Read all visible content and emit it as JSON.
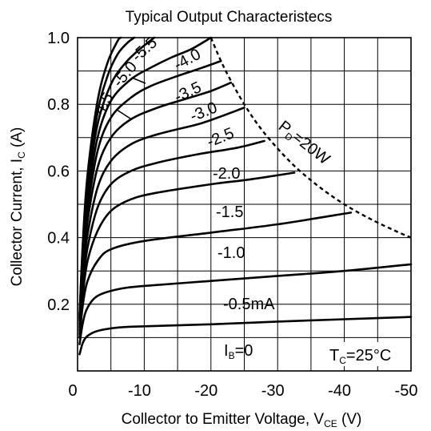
{
  "chart_data": {
    "type": "line",
    "title": "Typical Output Characteristecs",
    "xlabel": {
      "main": "Collector to Emitter Voltage, V",
      "sub": "CE",
      "unit": " (V)"
    },
    "ylabel": {
      "main": "Collector Current, I",
      "sub": "C",
      "unit": " (A)"
    },
    "xlim": [
      0,
      -50
    ],
    "ylim": [
      0,
      1.0
    ],
    "x_ticks": [
      "0",
      "-10",
      "-20",
      "-30",
      "-40",
      "-50"
    ],
    "y_ticks": [
      "0.2",
      "0.4",
      "0.6",
      "0.8",
      "1.0"
    ],
    "grid": true,
    "series": [
      {
        "name": "I_B=0",
        "points": [
          [
            -0.3,
            0.05
          ],
          [
            -0.8,
            0.085
          ],
          [
            -1.5,
            0.105
          ],
          [
            -3,
            0.12
          ],
          [
            -6,
            0.13
          ],
          [
            -10,
            0.134
          ],
          [
            -20,
            0.14
          ],
          [
            -30,
            0.148
          ],
          [
            -40,
            0.155
          ],
          [
            -50,
            0.162
          ]
        ]
      },
      {
        "name": "-0.5mA",
        "points": [
          [
            -0.3,
            0.08
          ],
          [
            -0.8,
            0.145
          ],
          [
            -1.5,
            0.19
          ],
          [
            -3,
            0.225
          ],
          [
            -6,
            0.245
          ],
          [
            -10,
            0.255
          ],
          [
            -20,
            0.27
          ],
          [
            -30,
            0.285
          ],
          [
            -40,
            0.3
          ],
          [
            -50,
            0.32
          ]
        ]
      },
      {
        "name": "-1.0",
        "points": [
          [
            -0.3,
            0.1
          ],
          [
            -0.8,
            0.2
          ],
          [
            -1.5,
            0.27
          ],
          [
            -3,
            0.33
          ],
          [
            -5,
            0.365
          ],
          [
            -10,
            0.39
          ],
          [
            -20,
            0.415
          ],
          [
            -30,
            0.44
          ],
          [
            -41,
            0.475
          ]
        ]
      },
      {
        "name": "-1.5",
        "points": [
          [
            -0.3,
            0.11
          ],
          [
            -0.8,
            0.23
          ],
          [
            -1.5,
            0.33
          ],
          [
            -3,
            0.42
          ],
          [
            -5,
            0.48
          ],
          [
            -8,
            0.515
          ],
          [
            -12,
            0.535
          ],
          [
            -20,
            0.56
          ],
          [
            -26,
            0.575
          ],
          [
            -32.5,
            0.595
          ]
        ]
      },
      {
        "name": "-2.0",
        "points": [
          [
            -0.3,
            0.12
          ],
          [
            -0.8,
            0.26
          ],
          [
            -1.5,
            0.37
          ],
          [
            -3,
            0.49
          ],
          [
            -5,
            0.56
          ],
          [
            -8,
            0.6
          ],
          [
            -12,
            0.625
          ],
          [
            -18,
            0.65
          ],
          [
            -24,
            0.67
          ],
          [
            -28,
            0.69
          ]
        ]
      },
      {
        "name": "-2.5",
        "points": [
          [
            -0.3,
            0.13
          ],
          [
            -0.8,
            0.29
          ],
          [
            -1.5,
            0.41
          ],
          [
            -3,
            0.55
          ],
          [
            -5,
            0.63
          ],
          [
            -8,
            0.68
          ],
          [
            -12,
            0.71
          ],
          [
            -18,
            0.74
          ],
          [
            -21,
            0.76
          ],
          [
            -25,
            0.79
          ]
        ]
      },
      {
        "name": "-3.0",
        "points": [
          [
            -0.3,
            0.14
          ],
          [
            -0.8,
            0.31
          ],
          [
            -1.5,
            0.45
          ],
          [
            -3,
            0.61
          ],
          [
            -5,
            0.7
          ],
          [
            -8,
            0.755
          ],
          [
            -12,
            0.79
          ],
          [
            -16,
            0.815
          ],
          [
            -20,
            0.84
          ],
          [
            -23,
            0.865
          ]
        ]
      },
      {
        "name": "-3.5",
        "points": [
          [
            -0.3,
            0.15
          ],
          [
            -0.8,
            0.33
          ],
          [
            -1.5,
            0.48
          ],
          [
            -3,
            0.66
          ],
          [
            -5,
            0.76
          ],
          [
            -8,
            0.82
          ],
          [
            -11,
            0.855
          ],
          [
            -15,
            0.885
          ],
          [
            -18,
            0.905
          ],
          [
            -21.5,
            0.93
          ]
        ]
      },
      {
        "name": "-4.0",
        "points": [
          [
            -0.3,
            0.155
          ],
          [
            -0.8,
            0.345
          ],
          [
            -1.5,
            0.51
          ],
          [
            -3,
            0.7
          ],
          [
            -5,
            0.81
          ],
          [
            -8,
            0.875
          ],
          [
            -11,
            0.91
          ],
          [
            -14,
            0.94
          ],
          [
            -17,
            0.965
          ],
          [
            -20,
            1.0
          ]
        ]
      },
      {
        "name": "-4.5",
        "points": [
          [
            -0.3,
            0.16
          ],
          [
            -0.8,
            0.36
          ],
          [
            -1.5,
            0.54
          ],
          [
            -3,
            0.74
          ],
          [
            -5,
            0.86
          ],
          [
            -7,
            0.92
          ],
          [
            -9,
            0.96
          ],
          [
            -11.5,
            1.0
          ]
        ]
      },
      {
        "name": "-5.0",
        "points": [
          [
            -0.3,
            0.165
          ],
          [
            -0.8,
            0.375
          ],
          [
            -1.5,
            0.565
          ],
          [
            -3,
            0.775
          ],
          [
            -4.5,
            0.885
          ],
          [
            -6,
            0.95
          ],
          [
            -7.5,
            0.985
          ],
          [
            -8.5,
            1.0
          ]
        ]
      },
      {
        "name": "-5.5",
        "points": [
          [
            -0.3,
            0.17
          ],
          [
            -0.8,
            0.39
          ],
          [
            -1.5,
            0.59
          ],
          [
            -3,
            0.81
          ],
          [
            -4.5,
            0.925
          ],
          [
            -6,
            0.99
          ],
          [
            -6.5,
            1.0
          ]
        ]
      }
    ],
    "pd_curve": {
      "label_main": "P",
      "label_sub": "D",
      "label_rest": "=20W",
      "points": [
        [
          -20,
          1.0
        ],
        [
          -22,
          0.909
        ],
        [
          -25,
          0.8
        ],
        [
          -28,
          0.714
        ],
        [
          -32,
          0.625
        ],
        [
          -36,
          0.556
        ],
        [
          -40,
          0.5
        ],
        [
          -44,
          0.455
        ],
        [
          -48,
          0.417
        ],
        [
          -50,
          0.4
        ]
      ]
    },
    "annotations": {
      "tc_main": "T",
      "tc_sub": "C",
      "tc_rest": "=25°C",
      "ib_main": "I",
      "ib_sub": "B",
      "ib_rest": "=0",
      "labels": [
        "-0.5mA",
        "-1.0",
        "-1.5",
        "-2.0",
        "-2.5",
        "-3.0",
        "-3.5",
        "-4.0",
        "-4.5",
        "-5.0",
        "-5.5"
      ]
    }
  }
}
